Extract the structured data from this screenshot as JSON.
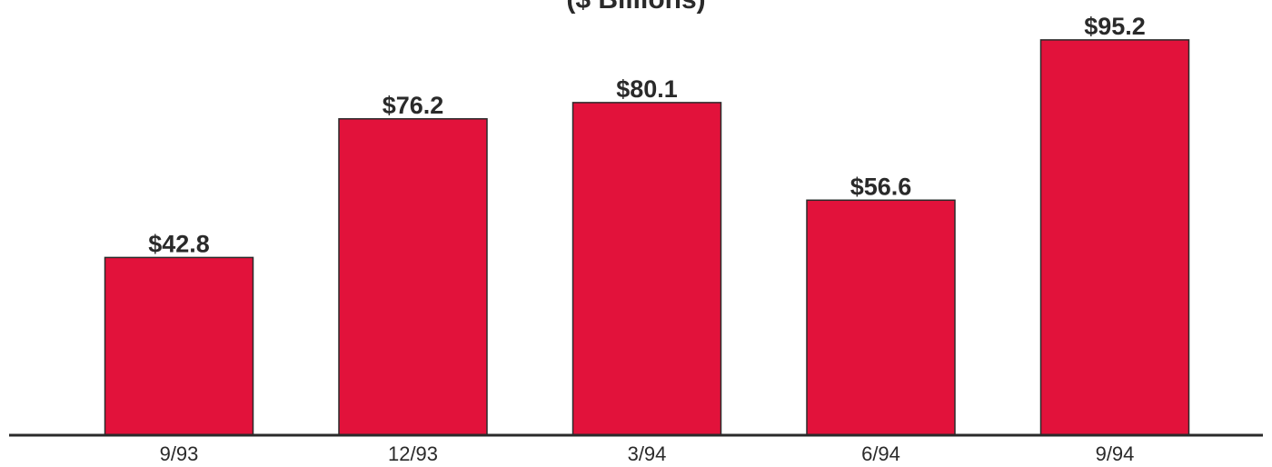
{
  "chart_data": {
    "type": "bar",
    "title": "($ Billions)",
    "categories": [
      "9/93",
      "12/93",
      "3/94",
      "6/94",
      "9/94"
    ],
    "values": [
      42.8,
      76.2,
      80.1,
      56.6,
      95.2
    ],
    "value_labels": [
      "$42.8",
      "$76.2",
      "$80.1",
      "$56.6",
      "$95.2"
    ],
    "xlabel": "",
    "ylabel": "",
    "ylim": [
      0,
      100
    ],
    "grid": false,
    "colors": {
      "bar": "#e2123b",
      "text": "#2a2a2a",
      "axis": "#2a2a2a"
    }
  }
}
